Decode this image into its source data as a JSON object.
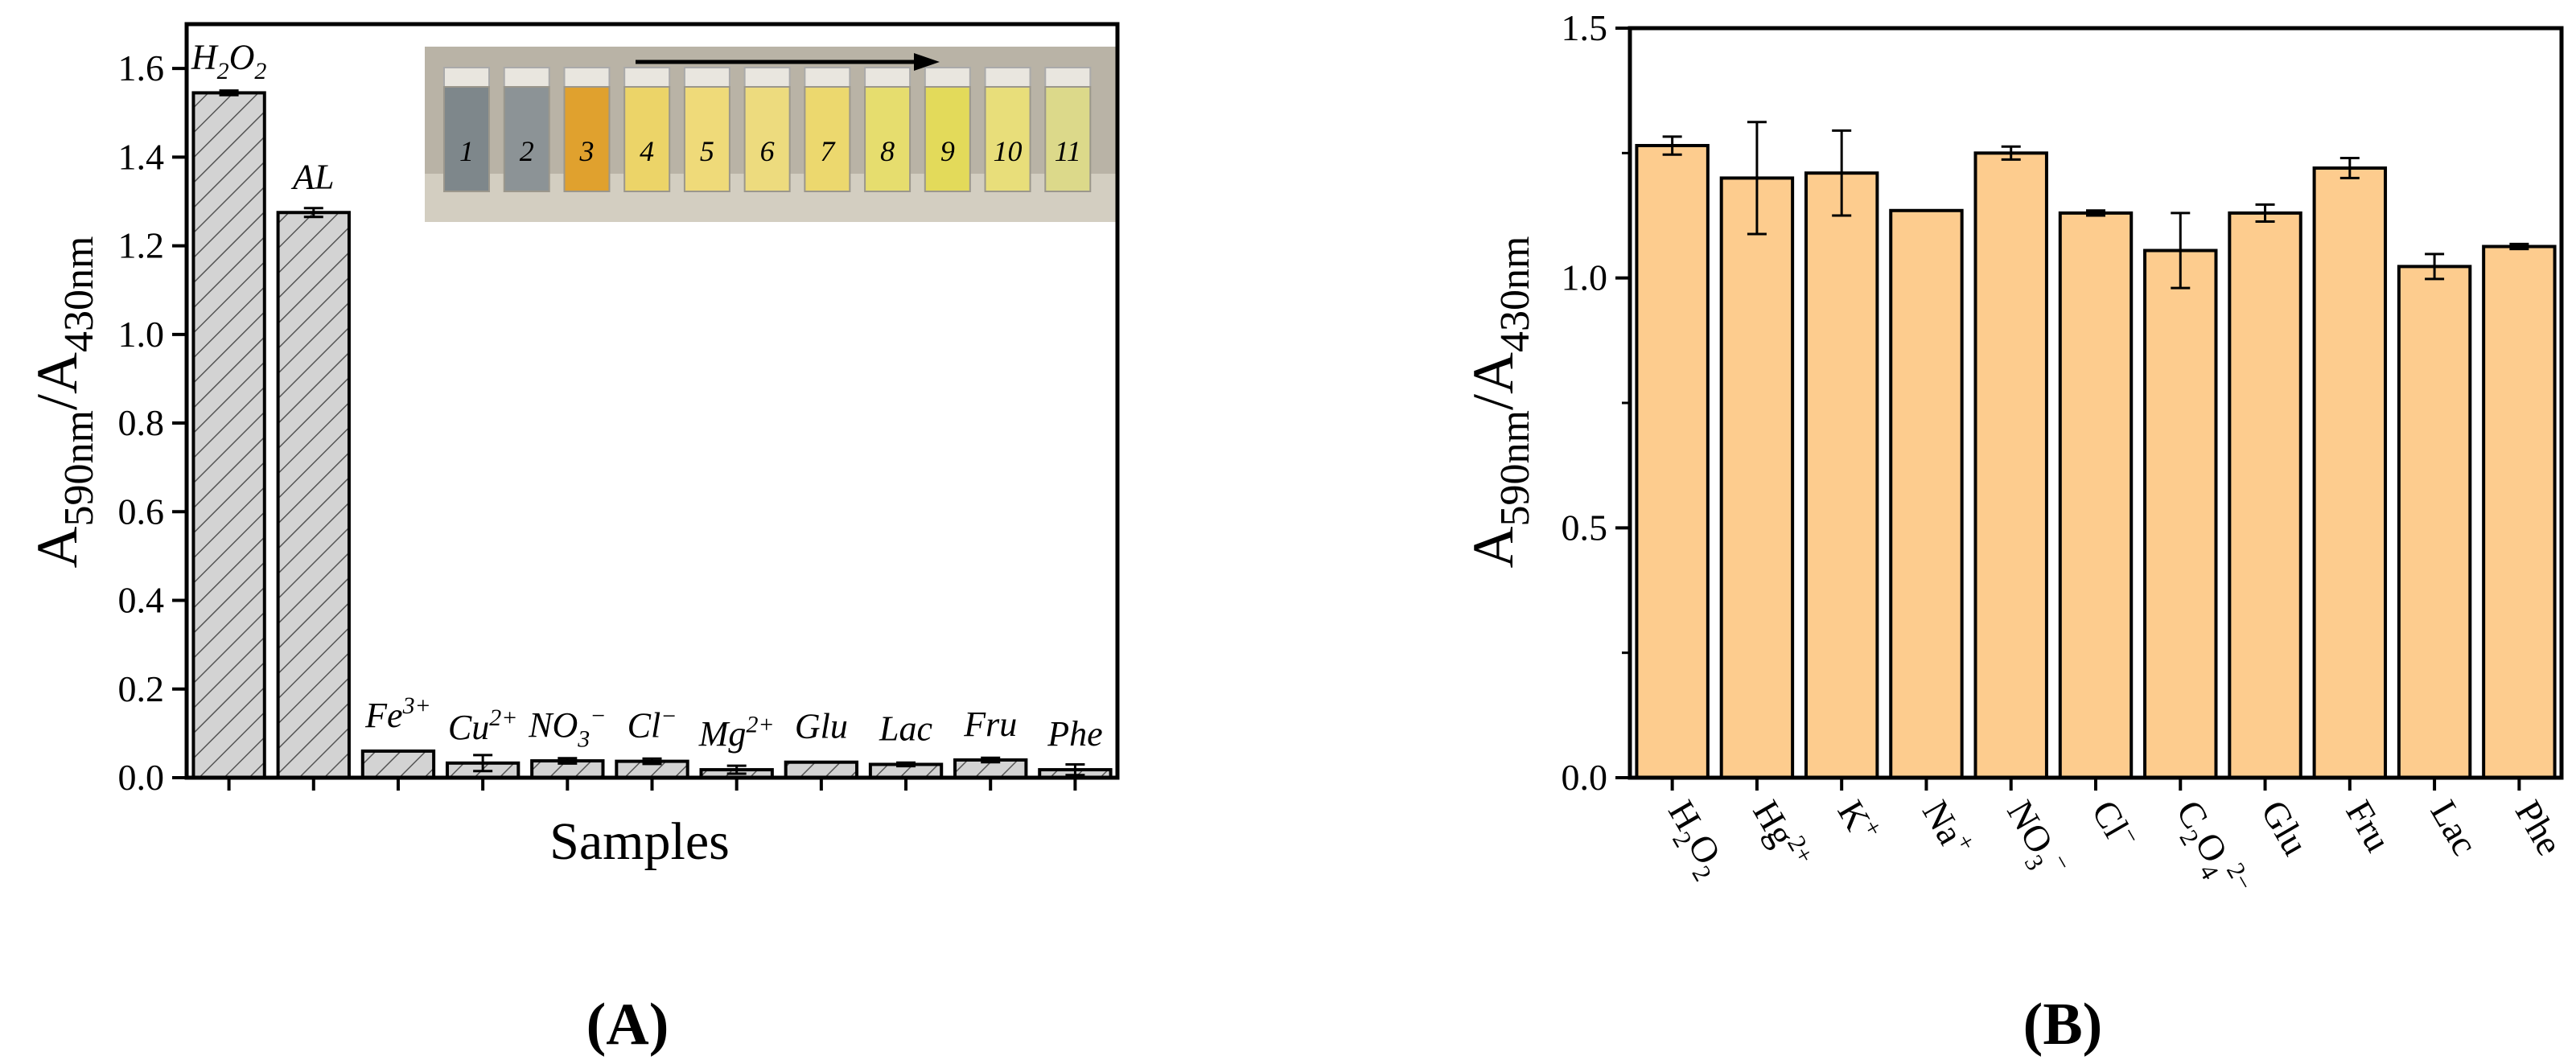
{
  "panels": [
    {
      "label": "A",
      "chart_data": {
        "type": "bar",
        "xlabel": "Samples",
        "ylabel": {
          "main": "A",
          "sub1": "590nm",
          "sep": "/A",
          "sub2": "430nm"
        },
        "ylim": [
          0,
          1.7
        ],
        "yticks": [
          0.0,
          0.2,
          0.4,
          0.6,
          0.8,
          1.0,
          1.2,
          1.4,
          1.6
        ],
        "ytick_labels": [
          "0.0",
          "0.2",
          "0.4",
          "0.6",
          "0.8",
          "1.0",
          "1.2",
          "1.4",
          "1.6"
        ],
        "categories": [
          {
            "parts": [
              [
                "H",
                ""
              ],
              [
                "2",
                "sub"
              ],
              [
                "O",
                ""
              ],
              [
                "2",
                "sub"
              ]
            ]
          },
          {
            "parts": [
              [
                "AL",
                ""
              ]
            ]
          },
          {
            "parts": [
              [
                "Fe",
                ""
              ],
              [
                "3+",
                "sup"
              ]
            ]
          },
          {
            "parts": [
              [
                "Cu",
                ""
              ],
              [
                "2+",
                "sup"
              ]
            ]
          },
          {
            "parts": [
              [
                "NO",
                ""
              ],
              [
                "3",
                "sub"
              ],
              [
                "−",
                "sup"
              ]
            ]
          },
          {
            "parts": [
              [
                "Cl",
                ""
              ],
              [
                "−",
                "sup"
              ]
            ]
          },
          {
            "parts": [
              [
                "Mg",
                ""
              ],
              [
                "2+",
                "sup"
              ]
            ]
          },
          {
            "parts": [
              [
                "Glu",
                ""
              ]
            ]
          },
          {
            "parts": [
              [
                "Lac",
                ""
              ]
            ]
          },
          {
            "parts": [
              [
                "Fru",
                ""
              ]
            ]
          },
          {
            "parts": [
              [
                "Phe",
                ""
              ]
            ]
          }
        ],
        "values": [
          1.545,
          1.275,
          0.06,
          0.033,
          0.038,
          0.037,
          0.018,
          0.035,
          0.03,
          0.04,
          0.018
        ],
        "errors": [
          0.005,
          0.01,
          0.0,
          0.018,
          0.006,
          0.006,
          0.009,
          0.0,
          0.004,
          0.005,
          0.012
        ],
        "bar_fill": "#d3d3d3",
        "bar_hatch": "diagonal",
        "inset": {
          "description_hidden": true,
          "tube_numbers": [
            "1",
            "2",
            "3",
            "4",
            "5",
            "6",
            "7",
            "8",
            "9",
            "10",
            "11"
          ],
          "tube_colors": [
            "#7e878b",
            "#8c9396",
            "#e0a12e",
            "#ecd468",
            "#efda79",
            "#eddb7e",
            "#ecd86e",
            "#e6dd6e",
            "#e3da5a",
            "#e8de7a",
            "#dcd98a"
          ],
          "background": "#b9b3a6"
        }
      }
    },
    {
      "label": "B",
      "chart_data": {
        "type": "bar",
        "xlabel": "",
        "ylabel": {
          "main": "A",
          "sub1": "590nm",
          "sep": "/A",
          "sub2": "430nm"
        },
        "ylim": [
          0,
          1.5
        ],
        "yticks": [
          0.0,
          0.5,
          1.0,
          1.5
        ],
        "ytick_labels": [
          "0.0",
          "0.5",
          "1.0",
          "1.5"
        ],
        "categories": [
          {
            "parts": [
              [
                "H",
                ""
              ],
              [
                "2",
                "sub"
              ],
              [
                "O",
                ""
              ],
              [
                "2",
                "sub"
              ]
            ]
          },
          {
            "parts": [
              [
                "Hg",
                ""
              ],
              [
                "2+",
                "sup"
              ]
            ]
          },
          {
            "parts": [
              [
                "K",
                ""
              ],
              [
                "+",
                "sup"
              ]
            ]
          },
          {
            "parts": [
              [
                "Na",
                ""
              ],
              [
                "+",
                "sup"
              ]
            ]
          },
          {
            "parts": [
              [
                "NO",
                ""
              ],
              [
                "3",
                "sub"
              ],
              [
                "−",
                "sup"
              ]
            ]
          },
          {
            "parts": [
              [
                "Cl",
                ""
              ],
              [
                "−",
                "sup"
              ]
            ]
          },
          {
            "parts": [
              [
                "C",
                ""
              ],
              [
                "2",
                "sub"
              ],
              [
                "O",
                ""
              ],
              [
                "4",
                "sub"
              ],
              [
                "2−",
                "sup"
              ]
            ]
          },
          {
            "parts": [
              [
                "Glu",
                ""
              ]
            ]
          },
          {
            "parts": [
              [
                "Fru",
                ""
              ]
            ]
          },
          {
            "parts": [
              [
                "Lac",
                ""
              ]
            ]
          },
          {
            "parts": [
              [
                "Phe",
                ""
              ]
            ]
          }
        ],
        "values": [
          1.265,
          1.2,
          1.21,
          1.135,
          1.25,
          1.13,
          1.055,
          1.13,
          1.22,
          1.023,
          1.063
        ],
        "errors": [
          0.018,
          0.112,
          0.085,
          0.0,
          0.013,
          0.005,
          0.075,
          0.017,
          0.02,
          0.025,
          0.005
        ],
        "bar_fill": "#fdcc8e"
      }
    }
  ]
}
